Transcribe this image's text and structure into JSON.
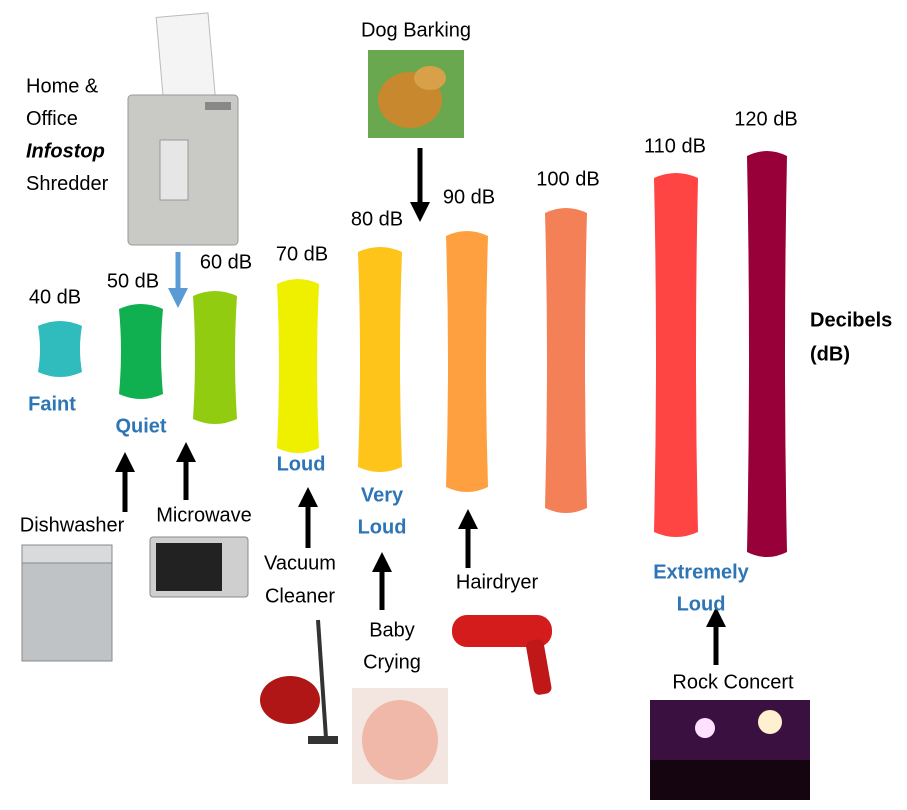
{
  "levels": [
    {
      "label": "40 dB",
      "color": "#30bcbc"
    },
    {
      "label": "50 dB",
      "color": "#10b050"
    },
    {
      "label": "60 dB",
      "color": "#92cc10"
    },
    {
      "label": "70 dB",
      "color": "#eef000"
    },
    {
      "label": "80 dB",
      "color": "#ffc41a"
    },
    {
      "label": "90 dB",
      "color": "#ffa040"
    },
    {
      "label": "100 dB",
      "color": "#f48058"
    },
    {
      "label": "110 dB",
      "color": "#ff4444"
    },
    {
      "label": "120 dB",
      "color": "#98003a"
    }
  ],
  "categories": [
    {
      "lines": [
        "Faint"
      ]
    },
    {
      "lines": [
        "Quiet"
      ]
    },
    {
      "lines": [
        "Loud"
      ]
    },
    {
      "lines": [
        "Very",
        "Loud"
      ]
    },
    {
      "lines": [
        "Extremely",
        "Loud"
      ]
    }
  ],
  "axis_label": {
    "lines": [
      "Decibels",
      "(dB)"
    ]
  },
  "sources": [
    {
      "lines": [
        "Home &",
        "Office",
        "Infostop",
        "Shredder"
      ]
    },
    {
      "lines": [
        "Dog Barking"
      ]
    },
    {
      "lines": [
        "Dishwasher"
      ]
    },
    {
      "lines": [
        "Microwave"
      ]
    },
    {
      "lines": [
        "Vacuum",
        "Cleaner"
      ]
    },
    {
      "lines": [
        "Baby",
        "Crying"
      ]
    },
    {
      "lines": [
        "Hairdryer"
      ]
    },
    {
      "lines": [
        "Rock Concert"
      ]
    }
  ]
}
